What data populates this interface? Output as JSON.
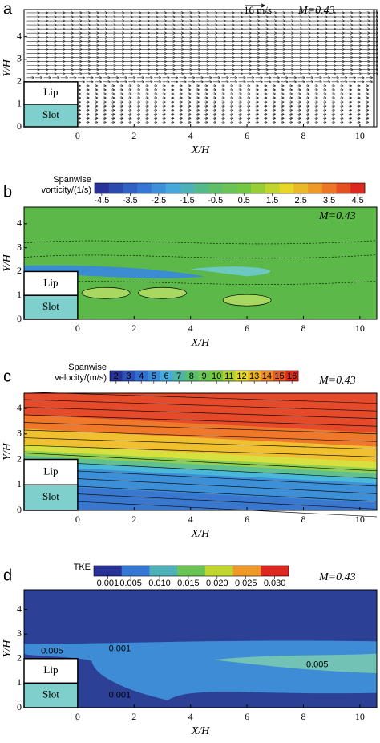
{
  "chart_data": [
    {
      "type": "vector",
      "panel": "a",
      "xlabel": "X/H",
      "ylabel": "Y/H",
      "xlim": [
        -1.9,
        10.6
      ],
      "ylim": [
        0,
        5.2
      ],
      "xticks": [
        0,
        2,
        4,
        6,
        8,
        10
      ],
      "yticks": [
        0,
        1,
        2,
        3,
        4
      ],
      "annotations": [
        "16 m/s",
        "M=0.43"
      ],
      "boxes": [
        "Lip",
        "Slot"
      ]
    },
    {
      "type": "contour",
      "panel": "b",
      "xlabel": "X/H",
      "ylabel": "Y/H",
      "xlim": [
        -1.9,
        10.6
      ],
      "ylim": [
        0,
        4.7
      ],
      "xticks": [
        0,
        2,
        4,
        6,
        8,
        10
      ],
      "yticks": [
        0,
        1,
        2,
        3,
        4
      ],
      "annotations": [
        "M=0.43"
      ],
      "boxes": [
        "Lip",
        "Slot"
      ],
      "colorbar": {
        "label": [
          "Spanwise",
          "vorticity/(1/s)"
        ],
        "ticks": [
          -4.5,
          -3.5,
          -2.5,
          -1.5,
          -0.5,
          0.5,
          1.5,
          2.5,
          3.5,
          4.5
        ]
      }
    },
    {
      "type": "contour",
      "panel": "c",
      "xlabel": "X/H",
      "ylabel": "Y/H",
      "xlim": [
        -1.9,
        10.6
      ],
      "ylim": [
        0,
        4.6
      ],
      "xticks": [
        0,
        2,
        4,
        6,
        8,
        10
      ],
      "yticks": [
        0,
        1,
        2,
        3,
        4
      ],
      "annotations": [
        "M=0.43"
      ],
      "boxes": [
        "Lip",
        "Slot"
      ],
      "colorbar": {
        "label": [
          "Spanwise",
          "velocity/(m/s)"
        ],
        "ticks": [
          2,
          3,
          4,
          5,
          6,
          7,
          8,
          9,
          10,
          11,
          12,
          13,
          14,
          15,
          16
        ]
      }
    },
    {
      "type": "contour",
      "panel": "d",
      "xlabel": "X/H",
      "ylabel": "Y/H",
      "xlim": [
        -1.9,
        10.6
      ],
      "ylim": [
        0,
        4.8
      ],
      "xticks": [
        0,
        2,
        4,
        6,
        8,
        10
      ],
      "yticks": [
        0,
        1,
        2,
        3,
        4
      ],
      "annotations": [
        "M=0.43"
      ],
      "boxes": [
        "Lip",
        "Slot"
      ],
      "contour_labels": [
        "0.005",
        "0.001",
        "0.005",
        "0.001"
      ],
      "colorbar": {
        "label": [
          "TKE"
        ],
        "ticks": [
          {
            "value": 0.001,
            "label": "0.001"
          },
          {
            "value": 0.005,
            "label": "0.005"
          },
          {
            "value": 0.01,
            "label": "0.010"
          },
          {
            "value": 0.015,
            "label": "0.015"
          },
          {
            "value": 0.02,
            "label": "0.020"
          },
          {
            "value": 0.025,
            "label": "0.025"
          },
          {
            "value": 0.03,
            "label": "0.030"
          }
        ]
      }
    }
  ]
}
